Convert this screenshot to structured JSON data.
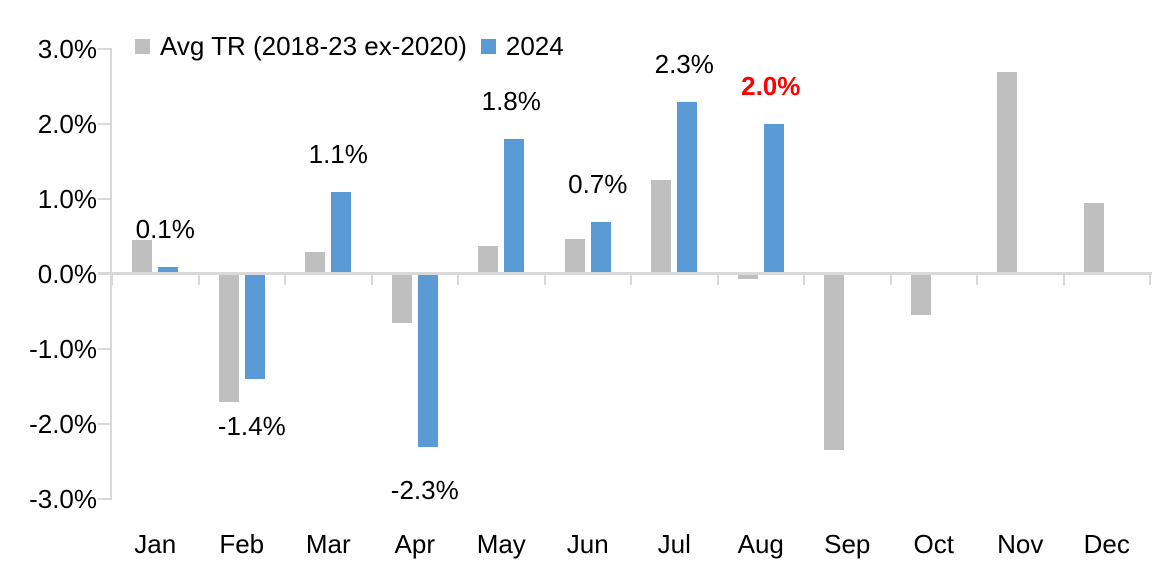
{
  "chart_data": {
    "type": "bar",
    "title": "",
    "categories": [
      "Jan",
      "Feb",
      "Mar",
      "Apr",
      "May",
      "Jun",
      "Jul",
      "Aug",
      "Sep",
      "Oct",
      "Nov",
      "Dec"
    ],
    "series": [
      {
        "name": "Avg TR (2018-23 ex-2020)",
        "slug": "avg-tr",
        "color": "#BFBFBF",
        "values": [
          0.45,
          -1.7,
          0.3,
          -0.65,
          0.38,
          0.47,
          1.25,
          -0.07,
          -2.35,
          -0.55,
          2.7,
          0.95
        ]
      },
      {
        "name": "2024",
        "slug": "2024",
        "color": "#5B9BD5",
        "values": [
          0.1,
          -1.4,
          1.1,
          -2.3,
          1.8,
          0.7,
          2.3,
          2.0,
          null,
          null,
          null,
          null
        ]
      }
    ],
    "data_labels": [
      {
        "month": "Jan",
        "text": "0.1%",
        "color": "#000000",
        "bold": false
      },
      {
        "month": "Feb",
        "text": "-1.4%",
        "color": "#000000",
        "bold": false
      },
      {
        "month": "Mar",
        "text": "1.1%",
        "color": "#000000",
        "bold": false
      },
      {
        "month": "Apr",
        "text": "-2.3%",
        "color": "#000000",
        "bold": false
      },
      {
        "month": "May",
        "text": "1.8%",
        "color": "#000000",
        "bold": false
      },
      {
        "month": "Jun",
        "text": "0.7%",
        "color": "#000000",
        "bold": false
      },
      {
        "month": "Jul",
        "text": "2.3%",
        "color": "#000000",
        "bold": false
      },
      {
        "month": "Aug",
        "text": "2.0%",
        "color": "#FF0000",
        "bold": true
      }
    ],
    "y_axis": {
      "tick_labels": [
        "3.0%",
        "2.0%",
        "1.0%",
        "0.0%",
        "-1.0%",
        "-2.0%",
        "-3.0%"
      ],
      "min": -3.0,
      "max": 3.0,
      "step": 1.0
    },
    "legend": {
      "position": "top",
      "entries": [
        {
          "label": "Avg TR (2018-23 ex-2020)",
          "color": "#BFBFBF"
        },
        {
          "label": "2024",
          "color": "#5B9BD5"
        }
      ]
    },
    "grid": false,
    "axis_color": "#D9D9D9",
    "background": "#FFFFFF"
  }
}
